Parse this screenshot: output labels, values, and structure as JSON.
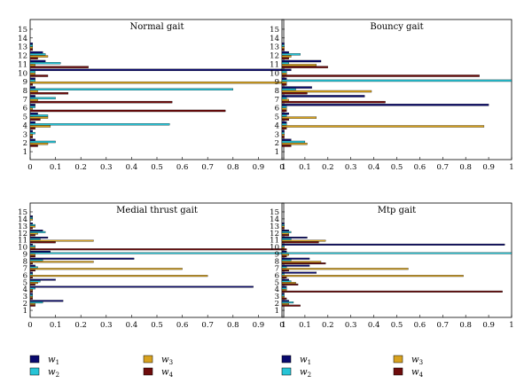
{
  "chart_data": [
    {
      "type": "bar",
      "orientation": "horizontal",
      "title": "Normal gait",
      "categories": [
        "1",
        "2",
        "3",
        "4",
        "5",
        "6",
        "7",
        "8",
        "9",
        "10",
        "11",
        "12",
        "13",
        "14",
        "15"
      ],
      "xlim": [
        0,
        1
      ],
      "xticks": [
        "0",
        "0.1",
        "0.2",
        "0.3",
        "0.4",
        "0.5",
        "0.6",
        "0.7",
        "0.8",
        "0.9",
        "1"
      ],
      "series": [
        {
          "name": "w1",
          "values": [
            0.0,
            0.02,
            0.01,
            0.02,
            0.03,
            0.02,
            0.02,
            0.02,
            0.02,
            1.0,
            0.06,
            0.05,
            0.01,
            0.0,
            0.0
          ]
        },
        {
          "name": "w2",
          "values": [
            0.0,
            0.1,
            0.02,
            0.55,
            0.07,
            0.02,
            0.1,
            0.8,
            0.02,
            0.02,
            0.12,
            0.06,
            0.01,
            0.0,
            0.0
          ]
        },
        {
          "name": "w3",
          "values": [
            0.0,
            0.07,
            0.01,
            0.08,
            0.07,
            0.01,
            0.03,
            0.03,
            1.0,
            0.02,
            0.02,
            0.07,
            0.01,
            0.0,
            0.0
          ]
        },
        {
          "name": "w4",
          "values": [
            0.0,
            0.03,
            0.01,
            0.02,
            0.04,
            0.77,
            0.56,
            0.15,
            0.01,
            0.07,
            0.23,
            0.03,
            0.01,
            0.0,
            0.0
          ]
        }
      ]
    },
    {
      "type": "bar",
      "orientation": "horizontal",
      "title": "Bouncy gait",
      "categories": [
        "1",
        "2",
        "3",
        "4",
        "5",
        "6",
        "7",
        "8",
        "9",
        "10",
        "11",
        "12",
        "13",
        "14",
        "15"
      ],
      "xlim": [
        0,
        1
      ],
      "xticks": [
        "0",
        "0.1",
        "0.2",
        "0.3",
        "0.4",
        "0.5",
        "0.6",
        "0.7",
        "0.8",
        "0.9",
        "1"
      ],
      "series": [
        {
          "name": "w1",
          "values": [
            0.0,
            0.04,
            0.01,
            0.02,
            0.03,
            0.9,
            0.36,
            0.13,
            0.02,
            0.04,
            0.17,
            0.03,
            0.01,
            0.0,
            0.0
          ]
        },
        {
          "name": "w2",
          "values": [
            0.0,
            0.1,
            0.01,
            0.02,
            0.02,
            0.02,
            0.02,
            0.06,
            1.0,
            0.02,
            0.03,
            0.08,
            0.01,
            0.0,
            0.0
          ]
        },
        {
          "name": "w3",
          "values": [
            0.0,
            0.11,
            0.01,
            0.88,
            0.15,
            0.02,
            0.03,
            0.39,
            0.02,
            0.02,
            0.15,
            0.04,
            0.01,
            0.0,
            0.0
          ]
        },
        {
          "name": "w4",
          "values": [
            0.0,
            0.04,
            0.01,
            0.02,
            0.03,
            0.02,
            0.45,
            0.11,
            0.02,
            0.86,
            0.2,
            0.03,
            0.01,
            0.0,
            0.0
          ]
        }
      ]
    },
    {
      "type": "bar",
      "orientation": "horizontal",
      "title": "Medial thrust gait",
      "categories": [
        "1",
        "2",
        "3",
        "4",
        "5",
        "6",
        "7",
        "8",
        "9",
        "10",
        "11",
        "12",
        "13",
        "14",
        "15"
      ],
      "xlim": [
        0,
        1
      ],
      "xticks": [
        "0",
        "0.1",
        "0.2",
        "0.3",
        "0.4",
        "0.5",
        "0.6",
        "0.7",
        "0.8",
        "0.9",
        "1"
      ],
      "series": [
        {
          "name": "w1",
          "values": [
            0.0,
            0.13,
            0.01,
            0.88,
            0.1,
            0.01,
            0.02,
            0.41,
            0.08,
            0.01,
            0.07,
            0.05,
            0.01,
            0.01,
            0.0
          ]
        },
        {
          "name": "w2",
          "values": [
            0.0,
            0.05,
            0.01,
            0.02,
            0.04,
            0.01,
            0.03,
            0.05,
            1.0,
            0.02,
            0.04,
            0.06,
            0.02,
            0.01,
            0.0
          ]
        },
        {
          "name": "w3",
          "values": [
            0.0,
            0.02,
            0.01,
            0.01,
            0.03,
            0.7,
            0.6,
            0.25,
            0.02,
            0.02,
            0.25,
            0.03,
            0.02,
            0.01,
            0.0
          ]
        },
        {
          "name": "w4",
          "values": [
            0.0,
            0.02,
            0.01,
            0.01,
            0.02,
            0.01,
            0.02,
            0.01,
            0.02,
            1.0,
            0.1,
            0.02,
            0.01,
            0.0,
            0.0
          ]
        }
      ]
    },
    {
      "type": "bar",
      "orientation": "horizontal",
      "title": "Mtp gait",
      "categories": [
        "1",
        "2",
        "3",
        "4",
        "5",
        "6",
        "7",
        "8",
        "9",
        "10",
        "11",
        "12",
        "13",
        "14",
        "15"
      ],
      "xlim": [
        0,
        1
      ],
      "xticks": [
        "0",
        "0.1",
        "0.2",
        "0.3",
        "0.4",
        "0.5",
        "0.6",
        "0.7",
        "0.8",
        "0.9",
        "1"
      ],
      "series": [
        {
          "name": "w1",
          "values": [
            0.0,
            0.03,
            0.01,
            0.02,
            0.03,
            0.15,
            0.12,
            0.12,
            0.02,
            0.97,
            0.11,
            0.03,
            0.01,
            0.0,
            0.0
          ]
        },
        {
          "name": "w2",
          "values": [
            0.0,
            0.05,
            0.01,
            0.02,
            0.04,
            0.01,
            0.02,
            0.04,
            1.0,
            0.01,
            0.04,
            0.04,
            0.01,
            0.0,
            0.0
          ]
        },
        {
          "name": "w3",
          "values": [
            0.0,
            0.03,
            0.01,
            0.02,
            0.06,
            0.79,
            0.55,
            0.17,
            0.03,
            0.01,
            0.19,
            0.03,
            0.01,
            0.0,
            0.0
          ]
        },
        {
          "name": "w4",
          "values": [
            0.0,
            0.08,
            0.02,
            0.96,
            0.07,
            0.02,
            0.03,
            0.19,
            0.02,
            0.02,
            0.16,
            0.03,
            0.01,
            0.0,
            0.0
          ]
        }
      ]
    }
  ],
  "legend": [
    {
      "base": "w",
      "sub": "1",
      "color": "#0a0a6e"
    },
    {
      "base": "w",
      "sub": "2",
      "color": "#27c4d6"
    },
    {
      "base": "w",
      "sub": "3",
      "color": "#d8a21f"
    },
    {
      "base": "w",
      "sub": "4",
      "color": "#6e0c0c"
    }
  ]
}
